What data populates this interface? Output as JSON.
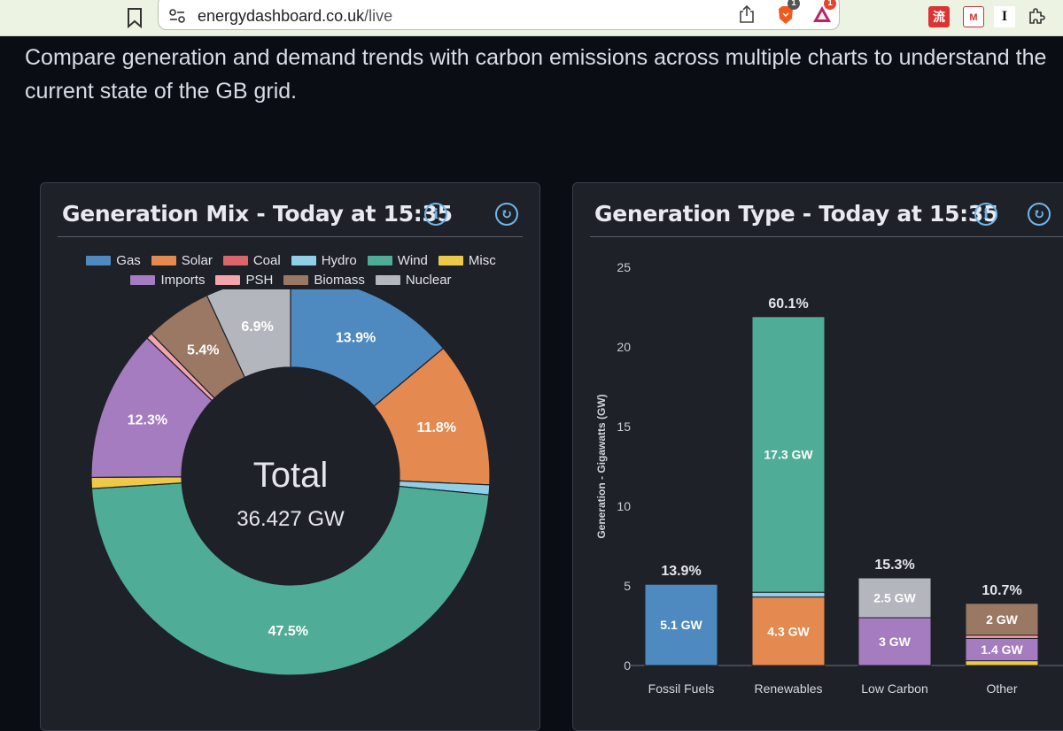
{
  "browser": {
    "url_domain": "energydashboard.co.uk",
    "url_path": "/live",
    "brave_badge": "1",
    "rewards_badge": "1",
    "ext_icons": [
      "流",
      "M",
      "I"
    ]
  },
  "intro": {
    "line1": "Compare generation and demand trends with carbon emissions across multiple charts to understand the",
    "line2": "current state of the GB grid."
  },
  "mix_card": {
    "title": "Generation Mix - Today at 15:35",
    "info_icon": "info-icon",
    "refresh_icon": "refresh-icon"
  },
  "type_card": {
    "title": "Generation Type - Today at 15:35",
    "info_icon": "info-icon",
    "refresh_icon": "refresh-icon"
  },
  "colors": {
    "Gas": "#4e8ac0",
    "Solar": "#e4894f",
    "Coal": "#d9666a",
    "Hydro": "#8fd0e8",
    "Wind": "#4fad97",
    "Misc": "#ecc94b",
    "Imports": "#a47cbf",
    "PSH": "#f3a4ac",
    "Biomass": "#9b7863",
    "Nuclear": "#b3b6bd"
  },
  "chart_data": [
    {
      "type": "pie",
      "legend": [
        "Gas",
        "Solar",
        "Coal",
        "Hydro",
        "Wind",
        "Misc",
        "Imports",
        "PSH",
        "Biomass",
        "Nuclear"
      ],
      "slices": [
        {
          "name": "Gas",
          "percent": 13.9,
          "label": "13.9%"
        },
        {
          "name": "Solar",
          "percent": 11.8,
          "label": "11.8%"
        },
        {
          "name": "Coal",
          "percent": 0.0,
          "label": ""
        },
        {
          "name": "Hydro",
          "percent": 0.8,
          "label": ""
        },
        {
          "name": "Wind",
          "percent": 47.5,
          "label": "47.5%"
        },
        {
          "name": "Misc",
          "percent": 0.9,
          "label": ""
        },
        {
          "name": "Imports",
          "percent": 12.3,
          "label": "12.3%"
        },
        {
          "name": "PSH",
          "percent": 0.5,
          "label": ""
        },
        {
          "name": "Biomass",
          "percent": 5.4,
          "label": "5.4%"
        },
        {
          "name": "Nuclear",
          "percent": 6.9,
          "label": "6.9%"
        }
      ],
      "center_title": "Total",
      "center_value": "36.427 GW"
    },
    {
      "type": "bar",
      "stacked": true,
      "ylabel": "Generation - Gigawatts (GW)",
      "ylim": [
        0,
        25
      ],
      "yticks": [
        "0",
        "5",
        "10",
        "15",
        "20",
        "25"
      ],
      "categories": [
        {
          "name": "Fossil Fuels",
          "total_label": "13.9%",
          "segments": [
            {
              "source": "Gas",
              "value": 5.1,
              "label": "5.1 GW"
            }
          ]
        },
        {
          "name": "Renewables",
          "total_label": "60.1%",
          "segments": [
            {
              "source": "Solar",
              "value": 4.3,
              "label": "4.3 GW"
            },
            {
              "source": "Hydro",
              "value": 0.3,
              "label": ""
            },
            {
              "source": "Wind",
              "value": 17.3,
              "label": "17.3 GW"
            }
          ]
        },
        {
          "name": "Low Carbon",
          "total_label": "15.3%",
          "segments": [
            {
              "source": "Imports",
              "value": 3.0,
              "label": "3 GW"
            },
            {
              "source": "Nuclear",
              "value": 2.5,
              "label": "2.5 GW"
            }
          ]
        },
        {
          "name": "Other",
          "total_label": "10.7%",
          "segments": [
            {
              "source": "Misc",
              "value": 0.3,
              "label": ""
            },
            {
              "source": "Imports",
              "value": 1.4,
              "label": "1.4 GW"
            },
            {
              "source": "PSH",
              "value": 0.2,
              "label": ""
            },
            {
              "source": "Biomass",
              "value": 2.0,
              "label": "2 GW"
            }
          ]
        }
      ]
    }
  ]
}
